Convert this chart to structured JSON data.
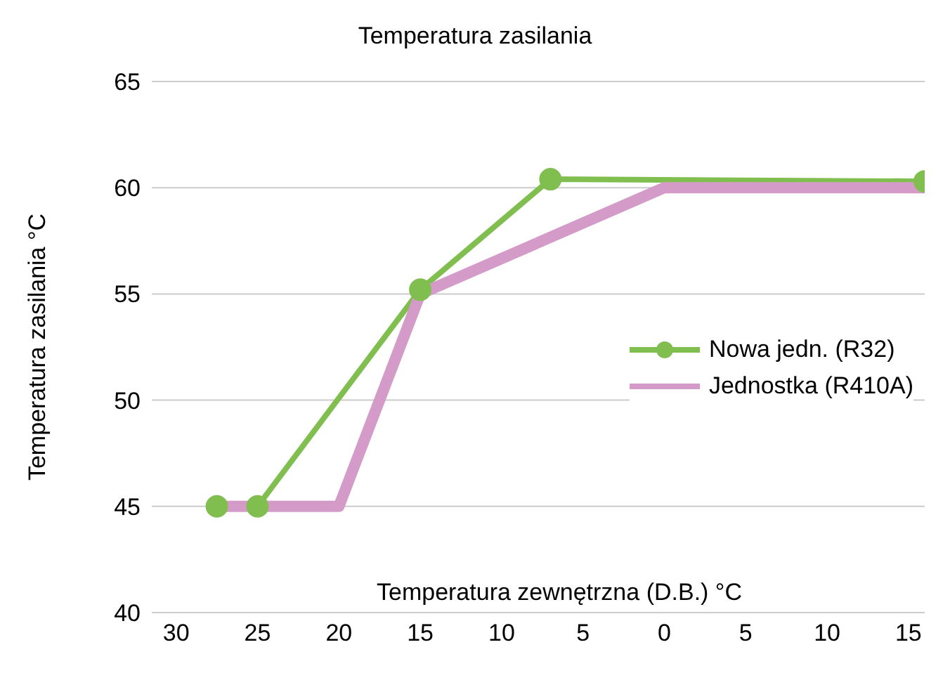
{
  "chart_data": {
    "type": "line",
    "title": "Temperatura zasilania",
    "xlabel": "Temperatura zewnętrzna (D.B.) °C",
    "ylabel": "Temperatura zasilania °C",
    "series": [
      {
        "name": "Nowa jedn. (R32)",
        "color": "#80bf4f",
        "x": [
          27.5,
          25,
          15,
          7,
          -16
        ],
        "values": [
          45,
          45,
          55.2,
          60.4,
          60.3
        ],
        "marker": "circle"
      },
      {
        "name": "Jednostka (R410A)",
        "color": "#d49bc8",
        "x": [
          27.5,
          20,
          15,
          0,
          -16
        ],
        "values": [
          45,
          45,
          55,
          60,
          60
        ],
        "marker": "none"
      }
    ],
    "xlim": [
      31.5,
      -16
    ],
    "xticks": [
      30,
      25,
      20,
      15,
      10,
      5,
      0,
      {
        "value": -5,
        "label": "5"
      },
      {
        "value": -10,
        "label": "10"
      },
      {
        "value": -15,
        "label": "15"
      }
    ],
    "ylim": [
      40,
      65
    ],
    "yticks": [
      40,
      45,
      50,
      55,
      60,
      65
    ],
    "grid": "y",
    "legend": "right",
    "line_style": "solid"
  }
}
